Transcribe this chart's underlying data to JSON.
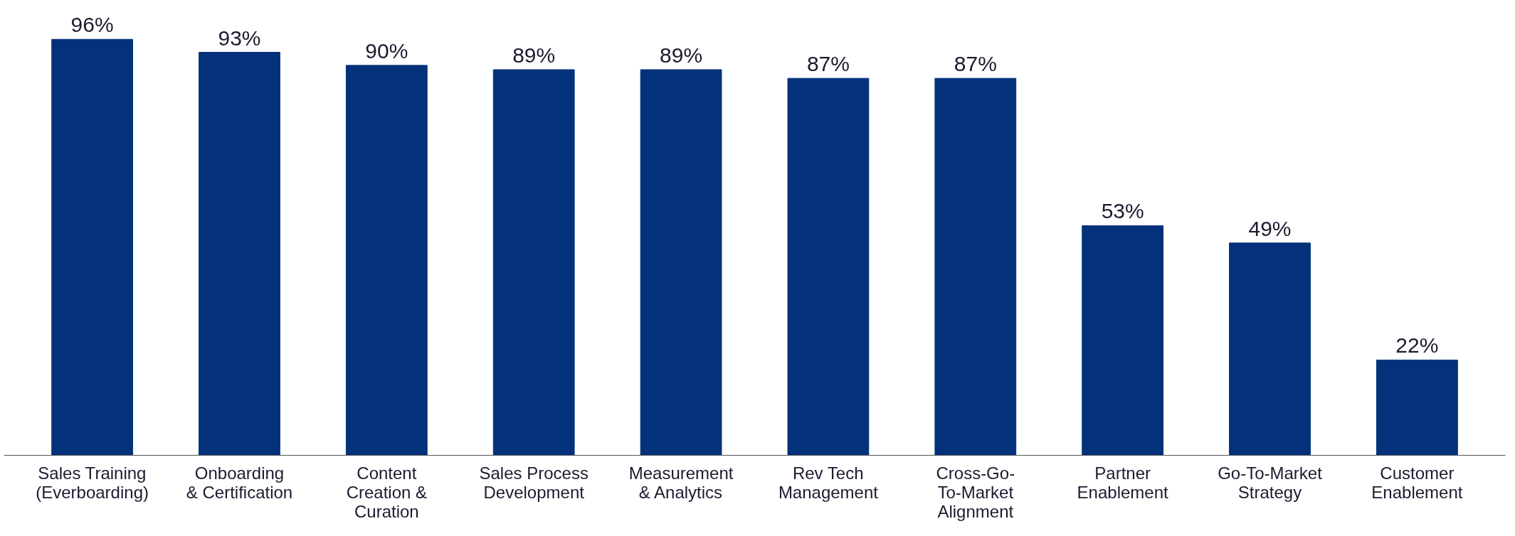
{
  "chart_data": {
    "type": "bar",
    "categories": [
      "Sales Training\n(Everboarding)",
      "Onboarding\n& Certification",
      "Content\nCreation &\nCuration",
      "Sales Process\nDevelopment",
      "Measurement\n& Analytics",
      "Rev Tech\nManagement",
      "Cross-Go-\nTo-Market\nAlignment",
      "Partner\nEnablement",
      "Go-To-Market\nStrategy",
      "Customer\nEnablement"
    ],
    "values": [
      96,
      93,
      90,
      89,
      89,
      87,
      87,
      53,
      49,
      22
    ],
    "value_labels": [
      "96%",
      "93%",
      "90%",
      "89%",
      "89%",
      "87%",
      "87%",
      "53%",
      "49%",
      "22%"
    ],
    "color": "#03317a",
    "tick_labels": "x",
    "grid": false
  }
}
